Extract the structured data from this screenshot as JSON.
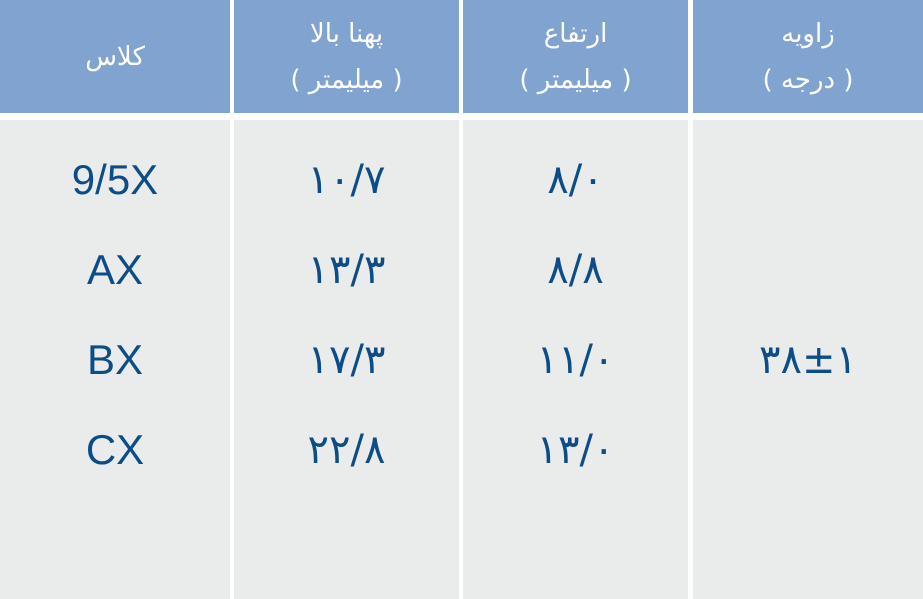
{
  "headers": {
    "class": {
      "line1": "کلاس"
    },
    "width": {
      "line1": "پهنا بالا",
      "line2": "( میلیمتر )"
    },
    "height": {
      "line1": "ارتفاع",
      "line2": "( میلیمتر )"
    },
    "angle": {
      "line1": "زاویه",
      "line2": "( درجه )"
    }
  },
  "rows": [
    {
      "class": "9/5X",
      "width": "۱۰/۷",
      "height": "۸/۰"
    },
    {
      "class": "AX",
      "width": "۱۳/۳",
      "height": "۸/۸"
    },
    {
      "class": "BX",
      "width": "۱۷/۳",
      "height": "۱۱/۰"
    },
    {
      "class": "CX",
      "width": "۲۲/۸",
      "height": "۱۳/۰"
    }
  ],
  "angle_value": "۳۸±۱",
  "colors": {
    "header": "#81a3cf",
    "body": "#eaebeb",
    "text": "#0d4d87"
  }
}
